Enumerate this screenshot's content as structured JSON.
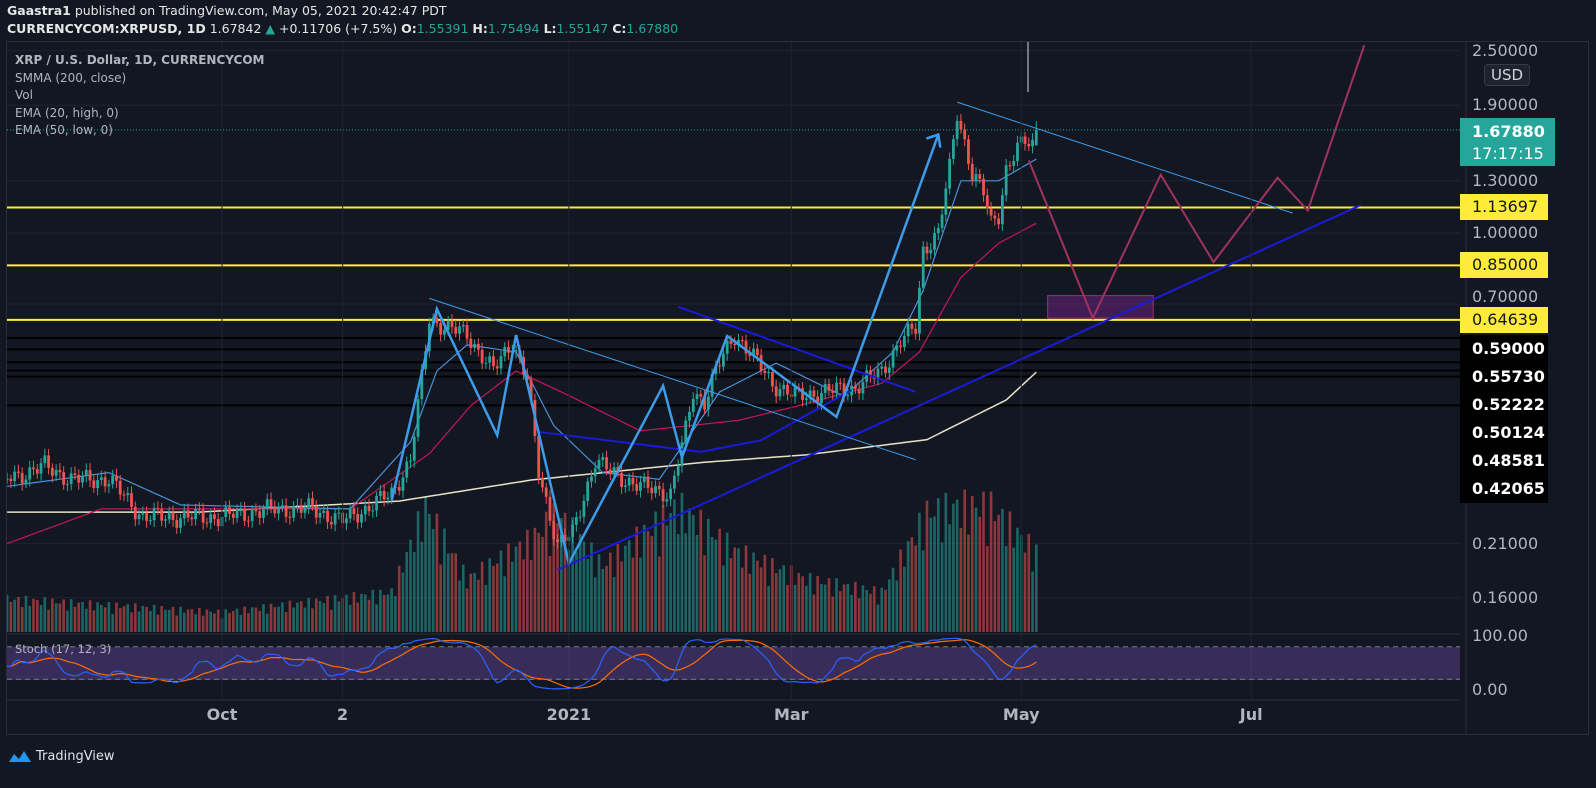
{
  "header": {
    "author": "Gaastra1",
    "published_text": "published on TradingView.com, May 05, 2021 20:42:47 PDT",
    "symbol": "CURRENCYCOM:XRPUSD, 1D",
    "last": "1.67842",
    "change": "+0.11706 (+7.5%)",
    "o_label": "O:",
    "o": "1.55391",
    "h_label": "H:",
    "h": "1.75494",
    "l_label": "L:",
    "l": "1.55147",
    "c_label": "C:",
    "c": "1.67880"
  },
  "legend": {
    "title": "XRP / U.S. Dollar, 1D, CURRENCYCOM",
    "items": [
      "SMMA (200, close)",
      "Vol",
      "EMA (20, high, 0)",
      "EMA (50, low, 0)"
    ],
    "stoch": "Stoch (17, 12, 3)"
  },
  "price_axis": {
    "currency": "USD",
    "ticks": [
      "2.50000",
      "1.90000",
      "1.30000",
      "1.00000",
      "0.70000",
      "0.21000",
      "0.16000"
    ],
    "current_price": "1.67880",
    "countdown": "17:17:15",
    "yellow_levels": [
      "1.13697",
      "0.85000",
      "0.64639"
    ],
    "black_levels": [
      "0.59000",
      "0.55730",
      "0.52222",
      "0.50124",
      "0.48581",
      "0.42065"
    ],
    "stoch_ticks": [
      "100.00",
      "0.00"
    ]
  },
  "time_axis": {
    "labels": [
      {
        "text": "Oct",
        "date": "2020-10-01"
      },
      {
        "text": "2",
        "date": "2020-11-02"
      },
      {
        "text": "2021",
        "date": "2021-01-01"
      },
      {
        "text": "Mar",
        "date": "2021-03-01"
      },
      {
        "text": "May",
        "date": "2021-05-01"
      },
      {
        "text": "Jul",
        "date": "2021-07-01"
      }
    ]
  },
  "brand": "TradingView",
  "colors": {
    "background": "#131722",
    "up": "#26a69a",
    "down": "#ef5350",
    "level": "#ffeb3b",
    "smma": "#e8e3c8",
    "ema20": "#4a90d9",
    "ema50": "#c2185b",
    "stoch_k": "#2962ff",
    "stoch_d": "#ff6d00",
    "drawing_blue": "#3d9be9",
    "drawing_dark": "#1a1adb",
    "projection": "#a0325f"
  },
  "chart_data": {
    "type": "candlestick",
    "y_scale": "log",
    "ylim": [
      0.14,
      2.6
    ],
    "xlim": [
      "2020-08-05",
      "2021-08-20"
    ],
    "grid": true,
    "last_candle": {
      "date": "2021-05-05",
      "open": 1.55391,
      "high": 1.75494,
      "low": 1.55147,
      "close": 1.6788
    },
    "close": [
      [
        "2020-08-05",
        0.29
      ],
      [
        "2020-08-15",
        0.31
      ],
      [
        "2020-08-22",
        0.29
      ],
      [
        "2020-09-01",
        0.29
      ],
      [
        "2020-09-10",
        0.24
      ],
      [
        "2020-09-20",
        0.24
      ],
      [
        "2020-10-01",
        0.24
      ],
      [
        "2020-10-15",
        0.25
      ],
      [
        "2020-10-25",
        0.25
      ],
      [
        "2020-11-02",
        0.235
      ],
      [
        "2020-11-08",
        0.25
      ],
      [
        "2020-11-15",
        0.27
      ],
      [
        "2020-11-20",
        0.32
      ],
      [
        "2020-11-23",
        0.48
      ],
      [
        "2020-11-25",
        0.65
      ],
      [
        "2020-11-30",
        0.62
      ],
      [
        "2020-12-05",
        0.6
      ],
      [
        "2020-12-12",
        0.5
      ],
      [
        "2020-12-17",
        0.58
      ],
      [
        "2020-12-21",
        0.48
      ],
      [
        "2020-12-24",
        0.3
      ],
      [
        "2020-12-29",
        0.21
      ],
      [
        "2021-01-02",
        0.22
      ],
      [
        "2021-01-08",
        0.32
      ],
      [
        "2021-01-12",
        0.3
      ],
      [
        "2021-01-20",
        0.28
      ],
      [
        "2021-01-28",
        0.27
      ],
      [
        "2021-02-01",
        0.37
      ],
      [
        "2021-02-03",
        0.45
      ],
      [
        "2021-02-06",
        0.43
      ],
      [
        "2021-02-09",
        0.5
      ],
      [
        "2021-02-14",
        0.6
      ],
      [
        "2021-02-18",
        0.55
      ],
      [
        "2021-02-24",
        0.47
      ],
      [
        "2021-03-02",
        0.44
      ],
      [
        "2021-03-10",
        0.45
      ],
      [
        "2021-03-18",
        0.46
      ],
      [
        "2021-03-25",
        0.5
      ],
      [
        "2021-03-30",
        0.58
      ],
      [
        "2021-04-03",
        0.62
      ],
      [
        "2021-04-05",
        0.92
      ],
      [
        "2021-04-09",
        1.0
      ],
      [
        "2021-04-12",
        1.38
      ],
      [
        "2021-04-14",
        1.83
      ],
      [
        "2021-04-16",
        1.58
      ],
      [
        "2021-04-18",
        1.35
      ],
      [
        "2021-04-21",
        1.22
      ],
      [
        "2021-04-23",
        1.05
      ],
      [
        "2021-04-25",
        1.1
      ],
      [
        "2021-04-27",
        1.38
      ],
      [
        "2021-04-30",
        1.52
      ],
      [
        "2021-05-02",
        1.58
      ],
      [
        "2021-05-04",
        1.56
      ],
      [
        "2021-05-05",
        1.6788
      ]
    ],
    "volume_relative": [
      [
        "2020-08-05",
        0.25
      ],
      [
        "2020-10-01",
        0.15
      ],
      [
        "2020-11-15",
        0.3
      ],
      [
        "2020-11-24",
        0.95
      ],
      [
        "2020-12-05",
        0.4
      ],
      [
        "2020-12-22",
        0.7
      ],
      [
        "2020-12-29",
        0.9
      ],
      [
        "2021-01-10",
        0.5
      ],
      [
        "2021-01-30",
        0.95
      ],
      [
        "2021-02-15",
        0.6
      ],
      [
        "2021-03-05",
        0.4
      ],
      [
        "2021-03-25",
        0.3
      ],
      [
        "2021-04-06",
        0.9
      ],
      [
        "2021-04-14",
        0.95
      ],
      [
        "2021-04-23",
        0.95
      ],
      [
        "2021-05-05",
        0.6
      ]
    ],
    "smma_200": [
      [
        "2020-08-05",
        0.246
      ],
      [
        "2020-09-25",
        0.246
      ],
      [
        "2020-11-17",
        0.26
      ],
      [
        "2020-12-22",
        0.289
      ],
      [
        "2021-02-06",
        0.316
      ],
      [
        "2021-03-05",
        0.328
      ],
      [
        "2021-04-06",
        0.354
      ],
      [
        "2021-04-27",
        0.432
      ],
      [
        "2021-05-05",
        0.497
      ]
    ],
    "ema_20_high": [
      [
        "2020-08-05",
        0.28
      ],
      [
        "2020-09-01",
        0.3
      ],
      [
        "2020-09-20",
        0.255
      ],
      [
        "2020-11-04",
        0.25
      ],
      [
        "2020-11-20",
        0.35
      ],
      [
        "2020-11-27",
        0.5
      ],
      [
        "2020-12-05",
        0.57
      ],
      [
        "2020-12-18",
        0.55
      ],
      [
        "2020-12-28",
        0.38
      ],
      [
        "2021-01-10",
        0.3
      ],
      [
        "2021-01-25",
        0.29
      ],
      [
        "2021-02-10",
        0.45
      ],
      [
        "2021-02-25",
        0.52
      ],
      [
        "2021-03-15",
        0.44
      ],
      [
        "2021-03-28",
        0.55
      ],
      [
        "2021-04-05",
        0.75
      ],
      [
        "2021-04-15",
        1.3
      ],
      [
        "2021-04-25",
        1.3
      ],
      [
        "2021-05-05",
        1.45
      ]
    ],
    "ema_50_low": [
      [
        "2020-08-05",
        0.21
      ],
      [
        "2020-08-30",
        0.25
      ],
      [
        "2020-11-04",
        0.25
      ],
      [
        "2020-11-25",
        0.33
      ],
      [
        "2020-12-06",
        0.42
      ],
      [
        "2020-12-18",
        0.5
      ],
      [
        "2020-12-30",
        0.45
      ],
      [
        "2021-01-20",
        0.37
      ],
      [
        "2021-02-15",
        0.39
      ],
      [
        "2021-03-03",
        0.42
      ],
      [
        "2021-03-25",
        0.47
      ],
      [
        "2021-04-04",
        0.55
      ],
      [
        "2021-04-15",
        0.8
      ],
      [
        "2021-04-25",
        0.95
      ],
      [
        "2021-05-05",
        1.05
      ]
    ],
    "stoch_levels": [
      80,
      20
    ],
    "drawings": {
      "zigzag": [
        [
          "2020-11-15",
          0.261
        ],
        [
          "2020-11-27",
          0.683
        ],
        [
          "2020-12-13",
          0.362
        ],
        [
          "2020-12-18",
          0.599
        ],
        [
          "2021-01-01",
          0.19
        ],
        [
          "2021-01-26",
          0.464
        ],
        [
          "2021-01-31",
          0.324
        ],
        [
          "2021-02-12",
          0.596
        ],
        [
          "2021-03-13",
          0.397
        ],
        [
          "2021-04-09",
          1.64
        ]
      ],
      "resistance_1": [
        [
          "2020-11-25",
          0.72
        ],
        [
          "2021-04-03",
          0.32
        ]
      ],
      "resistance_2": [
        [
          "2021-01-30",
          0.69
        ],
        [
          "2021-04-03",
          0.45
        ]
      ],
      "neckline": [
        [
          "2020-12-24",
          0.368
        ],
        [
          "2021-02-05",
          0.333
        ],
        [
          "2021-02-21",
          0.353
        ],
        [
          "2021-03-17",
          0.454
        ]
      ],
      "support": [
        [
          "2020-12-29",
          0.184
        ],
        [
          "2021-07-30",
          1.15
        ]
      ],
      "resistance_3": [
        [
          "2021-04-14",
          1.93
        ],
        [
          "2021-07-12",
          1.105
        ]
      ],
      "projection": [
        [
          "2021-05-03",
          1.44
        ],
        [
          "2021-05-20",
          0.652
        ],
        [
          "2021-06-07",
          1.34
        ],
        [
          "2021-06-21",
          0.864
        ],
        [
          "2021-07-08",
          1.32
        ],
        [
          "2021-07-16",
          1.12
        ],
        [
          "2021-07-31",
          2.57
        ]
      ],
      "target_zone": {
        "from": "2021-05-08",
        "to": "2021-06-05",
        "top": 0.73,
        "bottom": 0.652
      }
    }
  }
}
